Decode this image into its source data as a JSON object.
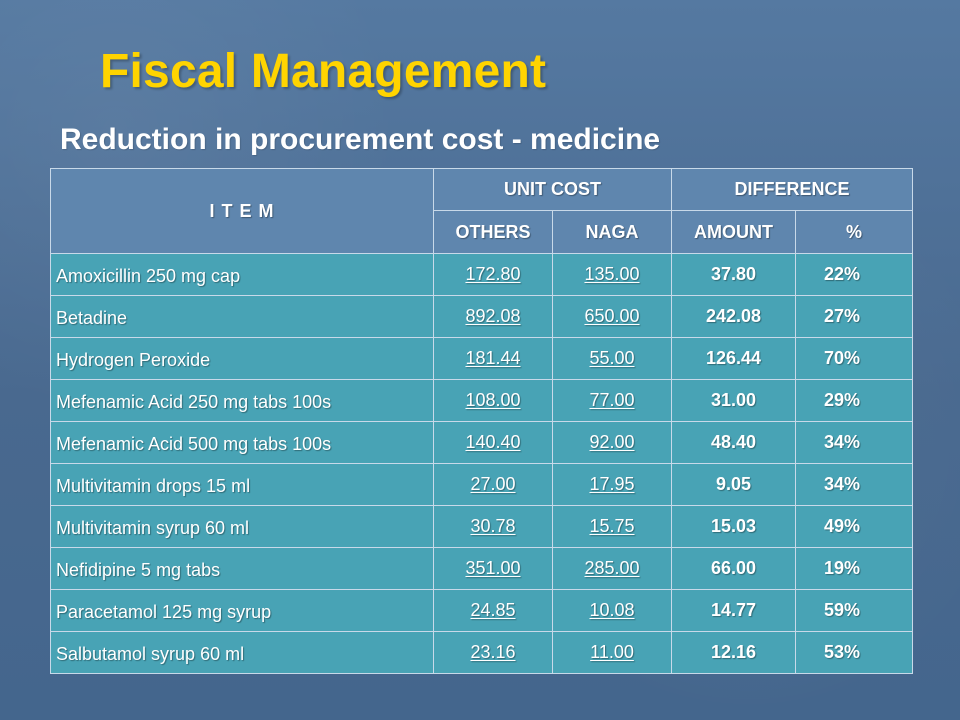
{
  "header": {
    "title": "Fiscal Management",
    "subtitle": "Reduction in procurement cost - medicine"
  },
  "table": {
    "headers": {
      "item": "I T E M",
      "unit_cost": "UNIT COST",
      "difference": "DIFFERENCE",
      "others": "OTHERS",
      "naga": "NAGA",
      "amount": "AMOUNT",
      "percent": "%"
    },
    "rows": [
      {
        "item": "Amoxicillin 250 mg cap",
        "others": "172.80",
        "naga": "135.00",
        "amount": "37.80",
        "percent": "22%"
      },
      {
        "item": "Betadine",
        "others": "892.08",
        "naga": "650.00",
        "amount": "242.08",
        "percent": "27%"
      },
      {
        "item": "Hydrogen Peroxide",
        "others": "181.44",
        "naga": "55.00",
        "amount": "126.44",
        "percent": "70%"
      },
      {
        "item": "Mefenamic Acid 250 mg tabs 100s",
        "others": "108.00",
        "naga": "77.00",
        "amount": "31.00",
        "percent": "29%"
      },
      {
        "item": "Mefenamic Acid 500 mg tabs 100s",
        "others": "140.40",
        "naga": "92.00",
        "amount": "48.40",
        "percent": "34%"
      },
      {
        "item": "Multivitamin drops 15 ml",
        "others": "27.00",
        "naga": "17.95",
        "amount": "9.05",
        "percent": "34%"
      },
      {
        "item": "Multivitamin syrup 60 ml",
        "others": "30.78",
        "naga": "15.75",
        "amount": "15.03",
        "percent": "49%"
      },
      {
        "item": "Nefidipine 5 mg tabs",
        "others": "351.00",
        "naga": "285.00",
        "amount": "66.00",
        "percent": "19%"
      },
      {
        "item": "Paracetamol 125 mg syrup",
        "others": "24.85",
        "naga": "10.08",
        "amount": "14.77",
        "percent": "59%"
      },
      {
        "item": "Salbutamol syrup 60 ml",
        "others": "23.16",
        "naga": "11.00",
        "amount": "12.16",
        "percent": "53%"
      }
    ]
  }
}
